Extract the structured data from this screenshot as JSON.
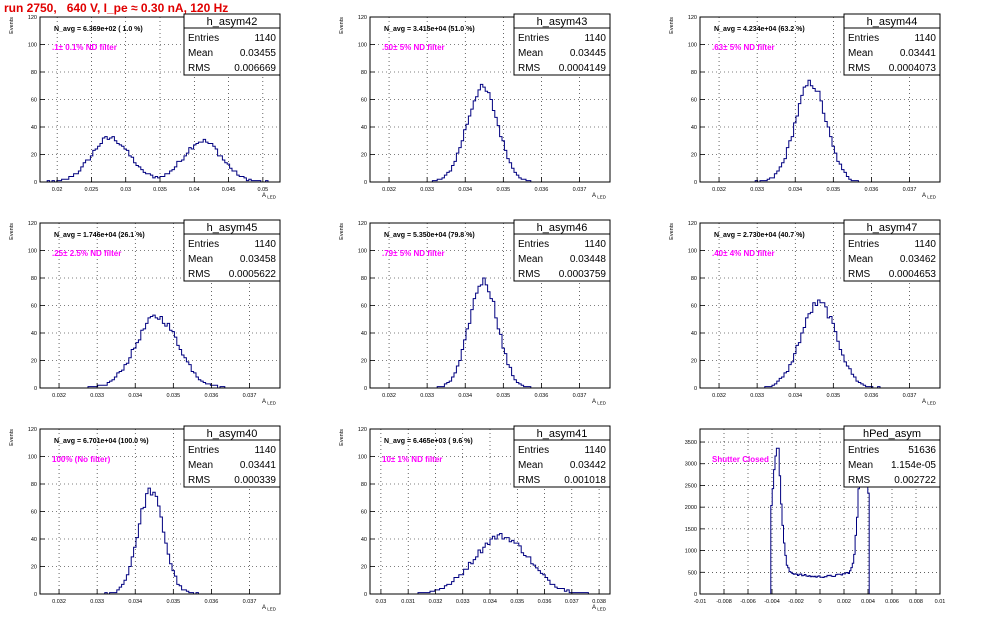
{
  "page": {
    "title": "run 2750,   640 V, I_pe ≈ 0.30 nA, 120 Hz",
    "colors": {
      "title": "#e00000",
      "histogram": "#000080",
      "annotation": "#ff00ff",
      "axis": "#000000"
    }
  },
  "chart_data": [
    {
      "type": "bar",
      "name": "h_asym42",
      "stats": {
        "Entries": "1140",
        "Mean": "0.03455",
        "RMS": "0.006669"
      },
      "navg": "N_avg = 6.369e+02 ( 1.0 %)",
      "note": ".1± 0.1% ND filter",
      "xlim": [
        0.0175,
        0.0525
      ],
      "ylim": [
        0,
        120
      ],
      "xticks": [
        0.02,
        0.025,
        0.03,
        0.035,
        0.04,
        0.045,
        0.05
      ],
      "xtick_labels": [
        "0.02",
        "0.025",
        "0.03",
        "0.035",
        "0.04",
        "0.045",
        "0.05"
      ],
      "yticks": [
        0,
        20,
        40,
        60,
        80,
        100,
        120
      ],
      "xlabel": "A_LED",
      "ylabel": "Events",
      "dist": {
        "kind": "bimodal",
        "x_start": 0.0175,
        "x_end": 0.0525,
        "bins": 100,
        "peaks": [
          {
            "mu": 0.0278,
            "sigma": 0.0028,
            "amp": 32
          },
          {
            "mu": 0.0412,
            "sigma": 0.0028,
            "amp": 30
          }
        ]
      }
    },
    {
      "type": "bar",
      "name": "h_asym43",
      "stats": {
        "Entries": "1140",
        "Mean": "0.03445",
        "RMS": "0.0004149"
      },
      "navg": "N_avg = 3.415e+04 (51.0 %)",
      "note": ".50± 5% ND filter",
      "xlim": [
        0.0315,
        0.0378
      ],
      "ylim": [
        0,
        120
      ],
      "xticks": [
        0.032,
        0.033,
        0.034,
        0.035,
        0.036,
        0.037
      ],
      "xtick_labels": [
        "0.032",
        "0.033",
        "0.034",
        "0.035",
        "0.036",
        "0.037"
      ],
      "yticks": [
        0,
        20,
        40,
        60,
        80,
        100,
        120
      ],
      "xlabel": "A_LED",
      "ylabel": "Events",
      "dist": {
        "kind": "gauss",
        "x_start": 0.0315,
        "x_end": 0.0378,
        "bins": 100,
        "mu": 0.03445,
        "sigma": 0.000415,
        "amp": 68
      }
    },
    {
      "type": "bar",
      "name": "h_asym44",
      "stats": {
        "Entries": "1140",
        "Mean": "0.03441",
        "RMS": "0.0004073"
      },
      "navg": "N_avg = 4.234e+04 (63.2 %)",
      "note": ".63± 5% ND filter",
      "xlim": [
        0.0315,
        0.0378
      ],
      "ylim": [
        0,
        120
      ],
      "xticks": [
        0.032,
        0.033,
        0.034,
        0.035,
        0.036,
        0.037
      ],
      "xtick_labels": [
        "0.032",
        "0.033",
        "0.034",
        "0.035",
        "0.036",
        "0.037"
      ],
      "yticks": [
        0,
        20,
        40,
        60,
        80,
        100,
        120
      ],
      "xlabel": "A_LED",
      "ylabel": "Events",
      "dist": {
        "kind": "gauss",
        "x_start": 0.0315,
        "x_end": 0.0378,
        "bins": 100,
        "mu": 0.03441,
        "sigma": 0.000407,
        "amp": 72
      }
    },
    {
      "type": "bar",
      "name": "h_asym45",
      "stats": {
        "Entries": "1140",
        "Mean": "0.03458",
        "RMS": "0.0005622"
      },
      "navg": "N_avg = 1.746e+04 (26.1 %)",
      "note": ".25± 2.5% ND filter",
      "xlim": [
        0.0315,
        0.0378
      ],
      "ylim": [
        0,
        120
      ],
      "xticks": [
        0.032,
        0.033,
        0.034,
        0.035,
        0.036,
        0.037
      ],
      "xtick_labels": [
        "0.032",
        "0.033",
        "0.034",
        "0.035",
        "0.036",
        "0.037"
      ],
      "yticks": [
        0,
        20,
        40,
        60,
        80,
        100,
        120
      ],
      "xlabel": "A_LED",
      "ylabel": "Events",
      "dist": {
        "kind": "gauss",
        "x_start": 0.0315,
        "x_end": 0.0378,
        "bins": 100,
        "mu": 0.03458,
        "sigma": 0.00056,
        "amp": 52
      }
    },
    {
      "type": "bar",
      "name": "h_asym46",
      "stats": {
        "Entries": "1140",
        "Mean": "0.03448",
        "RMS": "0.0003759"
      },
      "navg": "N_avg = 5.350e+04 (79.8 %)",
      "note": ".79± 5% ND filter",
      "xlim": [
        0.0315,
        0.0378
      ],
      "ylim": [
        0,
        120
      ],
      "xticks": [
        0.032,
        0.033,
        0.034,
        0.035,
        0.036,
        0.037
      ],
      "xtick_labels": [
        "0.032",
        "0.033",
        "0.034",
        "0.035",
        "0.036",
        "0.037"
      ],
      "yticks": [
        0,
        20,
        40,
        60,
        80,
        100,
        120
      ],
      "xlabel": "A_LED",
      "ylabel": "Events",
      "dist": {
        "kind": "gauss",
        "x_start": 0.0315,
        "x_end": 0.0378,
        "bins": 100,
        "mu": 0.03448,
        "sigma": 0.000376,
        "amp": 78
      }
    },
    {
      "type": "bar",
      "name": "h_asym47",
      "stats": {
        "Entries": "1140",
        "Mean": "0.03462",
        "RMS": "0.0004653"
      },
      "navg": "N_avg = 2.730e+04 (40.7 %)",
      "note": ".40± 4% ND filter",
      "xlim": [
        0.0315,
        0.0378
      ],
      "ylim": [
        0,
        120
      ],
      "xticks": [
        0.032,
        0.033,
        0.034,
        0.035,
        0.036,
        0.037
      ],
      "xtick_labels": [
        "0.032",
        "0.033",
        "0.034",
        "0.035",
        "0.036",
        "0.037"
      ],
      "yticks": [
        0,
        20,
        40,
        60,
        80,
        100,
        120
      ],
      "xlabel": "A_LED",
      "ylabel": "Events",
      "dist": {
        "kind": "gauss",
        "x_start": 0.0315,
        "x_end": 0.0378,
        "bins": 100,
        "mu": 0.03462,
        "sigma": 0.000465,
        "amp": 62
      }
    },
    {
      "type": "bar",
      "name": "h_asym40",
      "stats": {
        "Entries": "1140",
        "Mean": "0.03441",
        "RMS": "0.000339"
      },
      "navg": "N_avg = 6.701e+04 (100.0 %)",
      "note": "100% (No filter)",
      "xlim": [
        0.0315,
        0.0378
      ],
      "ylim": [
        0,
        120
      ],
      "xticks": [
        0.032,
        0.033,
        0.034,
        0.035,
        0.036,
        0.037
      ],
      "xtick_labels": [
        "0.032",
        "0.033",
        "0.034",
        "0.035",
        "0.036",
        "0.037"
      ],
      "yticks": [
        0,
        20,
        40,
        60,
        80,
        100,
        120
      ],
      "xlabel": "A_LED",
      "ylabel": "Events",
      "dist": {
        "kind": "gauss",
        "x_start": 0.0315,
        "x_end": 0.0378,
        "bins": 100,
        "mu": 0.03441,
        "sigma": 0.000339,
        "amp": 75
      }
    },
    {
      "type": "bar",
      "name": "h_asym41",
      "stats": {
        "Entries": "1140",
        "Mean": "0.03442",
        "RMS": "0.001018"
      },
      "navg": "N_avg = 6.465e+03 ( 9.6 %)",
      "note": "10± 1% ND filter",
      "xlim": [
        0.0296,
        0.0384
      ],
      "ylim": [
        0,
        120
      ],
      "xticks": [
        0.03,
        0.031,
        0.032,
        0.033,
        0.034,
        0.035,
        0.036,
        0.037,
        0.038
      ],
      "xtick_labels": [
        "0.03",
        "0.031",
        "0.032",
        "0.033",
        "0.034",
        "0.035",
        "0.036",
        "0.037",
        "0.038"
      ],
      "yticks": [
        0,
        20,
        40,
        60,
        80,
        100,
        120
      ],
      "xlabel": "A_LED",
      "ylabel": "Events",
      "dist": {
        "kind": "gauss",
        "x_start": 0.0296,
        "x_end": 0.0384,
        "bins": 100,
        "mu": 0.03442,
        "sigma": 0.00102,
        "amp": 42
      }
    },
    {
      "type": "bar",
      "name": "hPed_asym",
      "stats": {
        "Entries": "51636",
        "Mean": "1.154e-05",
        "RMS": "0.002722"
      },
      "navg": "",
      "note": "Shutter Closed",
      "xlim": [
        -0.01,
        0.01
      ],
      "ylim": [
        0,
        3800
      ],
      "xticks": [
        -0.01,
        -0.008,
        -0.006,
        -0.004,
        -0.002,
        0,
        0.002,
        0.004,
        0.006,
        0.008,
        0.01
      ],
      "xtick_labels": [
        "-0.01",
        "-0.008",
        "-0.006",
        "-0.004",
        "-0.002",
        "0",
        "0.002",
        "0.004",
        "0.006",
        "0.008",
        "0.01"
      ],
      "yticks": [
        0,
        500,
        1000,
        1500,
        2000,
        2500,
        3000,
        3500
      ],
      "xlabel": "",
      "ylabel": "",
      "dist": {
        "kind": "pedestal",
        "x_start": -0.0041,
        "x_end": 0.0041,
        "bins": 70,
        "peaks": [
          {
            "mu": -0.0036,
            "sigma": 0.00035,
            "amp": 2850
          },
          {
            "mu": 0.0036,
            "sigma": 0.00035,
            "amp": 3450
          }
        ],
        "base": 400
      }
    }
  ]
}
